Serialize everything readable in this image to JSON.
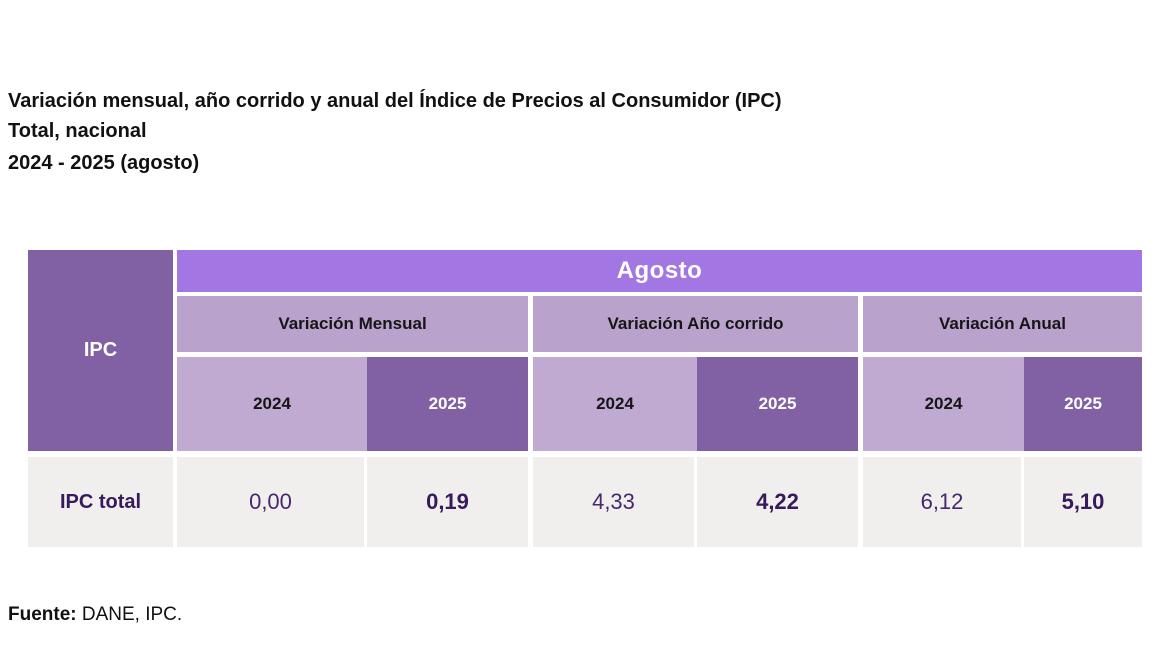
{
  "title": {
    "line1": "Variación mensual, año corrido y anual del Índice de Precios al Consumidor (IPC)",
    "line2": "Total, nacional",
    "line3": "2024 - 2025 (agosto)"
  },
  "table": {
    "corner_label": "IPC",
    "month_header": "Agosto",
    "groups": [
      {
        "label": "Variación Mensual",
        "years": [
          "2024",
          "2025"
        ]
      },
      {
        "label": "Variación Año corrido",
        "years": [
          "2024",
          "2025"
        ]
      },
      {
        "label": "Variación Anual",
        "years": [
          "2024",
          "2025"
        ]
      }
    ],
    "row": {
      "label": "IPC total",
      "values": [
        "0,00",
        "0,19",
        "4,33",
        "4,22",
        "6,12",
        "5,10"
      ]
    }
  },
  "source": {
    "label": "Fuente:",
    "text": " DANE, IPC."
  },
  "colors": {
    "accent_mid": "#8161A3",
    "accent_bright": "#A377E3",
    "band": "#B9A3CC",
    "light": "#C0AAD2",
    "row_bg": "#F1EFEE",
    "value_text": "#46286E",
    "value_text_bold": "#381A5C"
  },
  "chart_data": {
    "type": "table",
    "title": "Variación mensual, año corrido y anual del Índice de Precios al Consumidor (IPC)",
    "subtitle": "Total, nacional",
    "period": "2024 - 2025 (agosto)",
    "month": "Agosto",
    "column_groups": [
      "Variación Mensual",
      "Variación Año corrido",
      "Variación Anual"
    ],
    "columns": [
      "Variación Mensual 2024",
      "Variación Mensual 2025",
      "Variación Año corrido 2024",
      "Variación Año corrido 2025",
      "Variación Anual 2024",
      "Variación Anual 2025"
    ],
    "rows": [
      {
        "label": "IPC total",
        "values": [
          0.0,
          0.19,
          4.33,
          4.22,
          6.12,
          5.1
        ]
      }
    ],
    "value_format": "decimal-comma",
    "source": "Fuente: DANE, IPC."
  }
}
